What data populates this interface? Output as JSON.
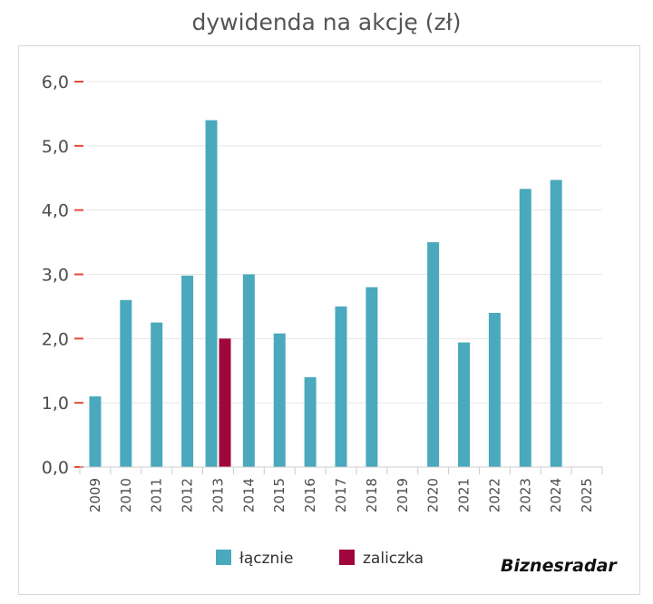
{
  "chart_data": {
    "type": "bar",
    "title": "dywidenda na akcję (zł)",
    "categories": [
      "2009",
      "2010",
      "2011",
      "2012",
      "2013",
      "2014",
      "2015",
      "2016",
      "2017",
      "2018",
      "2019",
      "2020",
      "2021",
      "2022",
      "2023",
      "2024",
      "2025"
    ],
    "series": [
      {
        "name": "łącznie",
        "color": "#4aa9bd",
        "values": [
          1.1,
          2.6,
          2.25,
          2.98,
          5.4,
          3.0,
          2.08,
          1.4,
          2.5,
          2.8,
          null,
          3.5,
          1.94,
          2.4,
          4.33,
          4.47,
          null
        ]
      },
      {
        "name": "zaliczka",
        "color": "#a0063c",
        "values": [
          null,
          null,
          null,
          null,
          2.0,
          null,
          null,
          null,
          null,
          null,
          null,
          null,
          null,
          null,
          null,
          null,
          null
        ]
      }
    ],
    "ylim": [
      0,
      6
    ],
    "yticks": [
      "0,0",
      "1,0",
      "2,0",
      "3,0",
      "4,0",
      "5,0",
      "6,0"
    ],
    "grid": true,
    "legend_position": "bottom"
  },
  "brand": "Biznesradar"
}
